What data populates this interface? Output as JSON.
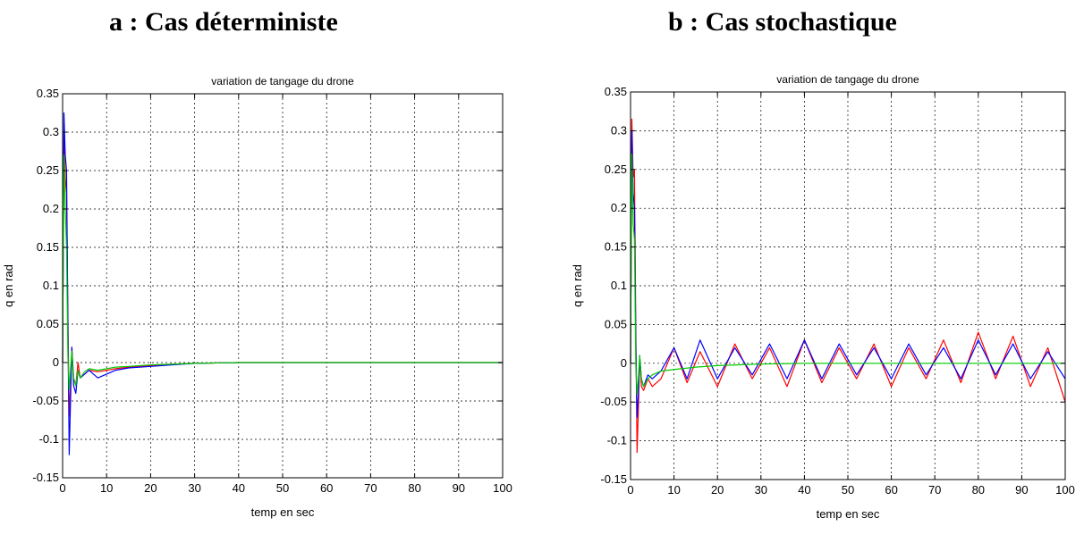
{
  "headings": {
    "a": "a : Cas déterministe",
    "b": "b : Cas stochastique"
  },
  "chart_data": [
    {
      "type": "line",
      "title": "variation de tangage du drone",
      "xlabel": "temp en sec",
      "ylabel": "q en rad",
      "xlim": [
        0,
        100
      ],
      "ylim": [
        -0.15,
        0.35
      ],
      "xticks": [
        "0",
        "10",
        "20",
        "30",
        "40",
        "50",
        "60",
        "70",
        "80",
        "90",
        "100"
      ],
      "yticks": [
        "-0.15",
        "-0.1",
        "-0.05",
        "0",
        "0.05",
        "0.1",
        "0.15",
        "0.2",
        "0.25",
        "0.3",
        "0.35"
      ],
      "grid": true,
      "series": [
        {
          "color": "#ff0000",
          "x": [
            0,
            0.3,
            0.6,
            0.9,
            1.2,
            1.5,
            1.8,
            2.1,
            2.5,
            3,
            3.5,
            4,
            5,
            6,
            8,
            10,
            12,
            15,
            20,
            25,
            30,
            40,
            50,
            60,
            70,
            80,
            90,
            100
          ],
          "y": [
            0,
            0.3,
            0.24,
            0.22,
            0.06,
            -0.07,
            -0.03,
            0.02,
            -0.02,
            -0.03,
            0.0,
            -0.02,
            -0.015,
            -0.01,
            -0.012,
            -0.01,
            -0.008,
            -0.006,
            -0.004,
            -0.002,
            -0.001,
            0,
            0,
            0,
            0,
            0,
            0,
            0
          ]
        },
        {
          "color": "#0000ff",
          "x": [
            0,
            0.3,
            0.6,
            0.9,
            1.2,
            1.5,
            1.8,
            2.1,
            2.5,
            3,
            3.5,
            4,
            5,
            6,
            8,
            10,
            12,
            15,
            20,
            25,
            30,
            40,
            50,
            60,
            70,
            80,
            90,
            100
          ],
          "y": [
            0,
            0.325,
            0.27,
            0.25,
            0.05,
            -0.12,
            -0.05,
            0.02,
            -0.03,
            -0.04,
            -0.01,
            -0.02,
            -0.015,
            -0.01,
            -0.02,
            -0.015,
            -0.01,
            -0.007,
            -0.005,
            -0.003,
            -0.001,
            0,
            0,
            0,
            0,
            0,
            0,
            0
          ]
        },
        {
          "color": "#00cc00",
          "x": [
            0,
            0.3,
            0.6,
            0.9,
            1.2,
            1.5,
            1.8,
            2.1,
            2.5,
            3,
            3.5,
            4,
            5,
            6,
            8,
            10,
            12,
            15,
            20,
            25,
            30,
            40,
            50,
            60,
            70,
            80,
            90,
            100
          ],
          "y": [
            0,
            0.27,
            0.2,
            0.15,
            0.01,
            -0.035,
            -0.01,
            0.015,
            -0.02,
            -0.03,
            -0.01,
            -0.02,
            -0.012,
            -0.008,
            -0.01,
            -0.008,
            -0.006,
            -0.005,
            -0.003,
            -0.002,
            -0.001,
            0,
            0,
            0,
            0,
            0,
            0,
            0
          ]
        }
      ]
    },
    {
      "type": "line",
      "title": "variation de tangage du drone",
      "xlabel": "temp en sec",
      "ylabel": "q en rad",
      "xlim": [
        0,
        100
      ],
      "ylim": [
        -0.15,
        0.35
      ],
      "xticks": [
        "0",
        "10",
        "20",
        "30",
        "40",
        "50",
        "60",
        "70",
        "80",
        "90",
        "100"
      ],
      "yticks": [
        "-0.15",
        "-0.1",
        "-0.05",
        "0",
        "0.05",
        "0.1",
        "0.15",
        "0.2",
        "0.25",
        "0.3",
        "0.35"
      ],
      "grid": true,
      "series": [
        {
          "color": "#ff0000",
          "x": [
            0,
            0.3,
            0.6,
            0.9,
            1.2,
            1.5,
            1.8,
            2.1,
            2.5,
            3,
            4,
            5,
            7,
            10,
            13,
            16,
            20,
            24,
            28,
            32,
            36,
            40,
            44,
            48,
            52,
            56,
            60,
            64,
            68,
            72,
            76,
            80,
            84,
            88,
            92,
            96,
            100
          ],
          "y": [
            0,
            0.315,
            0.24,
            0.25,
            0.05,
            -0.115,
            -0.06,
            0.01,
            -0.03,
            -0.035,
            -0.02,
            -0.03,
            -0.02,
            0.02,
            -0.025,
            0.015,
            -0.03,
            0.025,
            -0.02,
            0.02,
            -0.03,
            0.03,
            -0.025,
            0.02,
            -0.02,
            0.025,
            -0.03,
            0.02,
            -0.02,
            0.03,
            -0.025,
            0.04,
            -0.02,
            0.035,
            -0.03,
            0.02,
            -0.05
          ]
        },
        {
          "color": "#0000ff",
          "x": [
            0,
            0.3,
            0.6,
            0.9,
            1.2,
            1.5,
            1.8,
            2.1,
            2.5,
            3,
            4,
            5,
            7,
            10,
            13,
            16,
            20,
            24,
            28,
            32,
            36,
            40,
            44,
            48,
            52,
            56,
            60,
            64,
            68,
            72,
            76,
            80,
            84,
            88,
            92,
            96,
            100
          ],
          "y": [
            0,
            0.3,
            0.22,
            0.2,
            0.03,
            -0.07,
            -0.04,
            0.01,
            -0.02,
            -0.03,
            -0.015,
            -0.02,
            -0.01,
            0.02,
            -0.02,
            0.03,
            -0.02,
            0.02,
            -0.015,
            0.025,
            -0.02,
            0.03,
            -0.02,
            0.025,
            -0.015,
            0.02,
            -0.02,
            0.025,
            -0.015,
            0.02,
            -0.02,
            0.03,
            -0.015,
            0.025,
            -0.02,
            0.015,
            -0.02
          ]
        },
        {
          "color": "#00cc00",
          "x": [
            0,
            0.3,
            0.6,
            0.9,
            1.2,
            1.5,
            1.8,
            2.1,
            2.5,
            3,
            4,
            5,
            7,
            10,
            15,
            20,
            25,
            30,
            40,
            50,
            60,
            70,
            80,
            90,
            100
          ],
          "y": [
            0,
            0.27,
            0.18,
            0.16,
            0.0,
            -0.04,
            -0.02,
            0.01,
            -0.02,
            -0.03,
            -0.02,
            -0.015,
            -0.01,
            -0.008,
            -0.005,
            -0.003,
            -0.002,
            -0.001,
            0,
            0,
            0,
            0,
            0,
            0,
            0
          ]
        }
      ]
    }
  ]
}
